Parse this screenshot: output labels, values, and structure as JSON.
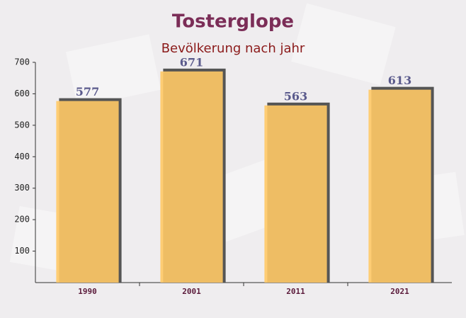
{
  "chart_data": {
    "type": "bar",
    "title": "Tosterglope",
    "subtitle": "Bevölkerung nach jahr",
    "categories": [
      "1990",
      "2001",
      "2011",
      "2021"
    ],
    "values": [
      577,
      671,
      563,
      613
    ],
    "color": "#ffc966",
    "ylim": [
      0,
      700
    ],
    "yticks": [
      100,
      200,
      300,
      400,
      500,
      600,
      700
    ]
  }
}
